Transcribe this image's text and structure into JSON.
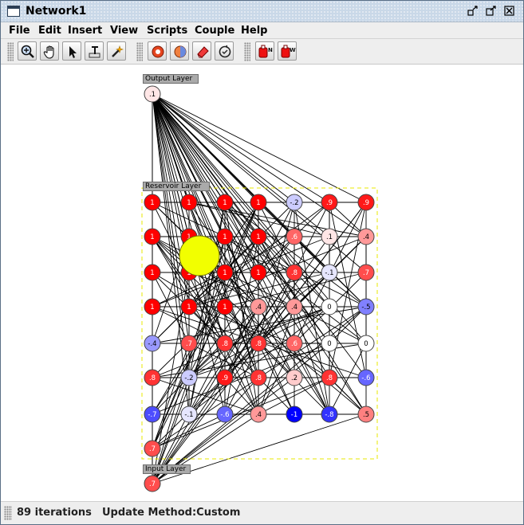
{
  "window": {
    "title": "Network1",
    "controls": [
      "minimize-icon",
      "maximize-icon",
      "close-icon"
    ]
  },
  "menubar": {
    "items": [
      "File",
      "Edit",
      "Insert",
      "View",
      "Scripts",
      "Couple",
      "Help"
    ]
  },
  "toolbar": {
    "groups": [
      [
        "zoom-icon",
        "pan-icon",
        "select-pointer-icon",
        "text-tool-icon",
        "wand-icon"
      ],
      [
        "clear-nodes-icon",
        "randomize-icon",
        "eraser-icon",
        "iterate-icon"
      ],
      [
        "add-neuron-icon",
        "add-weight-icon"
      ]
    ]
  },
  "network": {
    "output_layer": {
      "label": "Output Layer",
      "neurons": [
        {
          "value": ".1",
          "color": "#0b1be6"
        }
      ]
    },
    "reservoir_layer": {
      "label": "Reservoir Layer",
      "rows": [
        [
          "1",
          "1",
          "1",
          "1",
          "-.2",
          ".9",
          ".9"
        ],
        [
          "1",
          "1",
          "1",
          "1",
          ".6",
          ".1",
          ".4"
        ],
        [
          "1",
          "1",
          "1",
          "1",
          ".8",
          "-.1",
          ".7"
        ],
        [
          "1",
          "1",
          "1",
          ".4",
          ".4",
          "0",
          "-.5"
        ],
        [
          "-.4",
          ".7",
          ".8",
          ".8",
          ".6",
          "0",
          "0"
        ],
        [
          ".8",
          "-.2",
          ".9",
          ".8",
          ".2",
          ".8",
          "-.6"
        ],
        [
          "-.7",
          "-.1",
          "-.6",
          ".4",
          "-1",
          "-.8",
          ".5"
        ],
        [
          ".7"
        ]
      ]
    },
    "input_layer": {
      "label": "Input Layer",
      "neurons": [
        {
          "value": ".7"
        }
      ]
    }
  },
  "status": {
    "iterations": "89 iterations",
    "update_method": "Update Method:Custom"
  },
  "colors": {
    "positive": "#ff0000",
    "negative": "#0000ff",
    "neutral": "#ffffff",
    "selection_marker": "#f2ff00",
    "group_border": "#e8e800"
  }
}
